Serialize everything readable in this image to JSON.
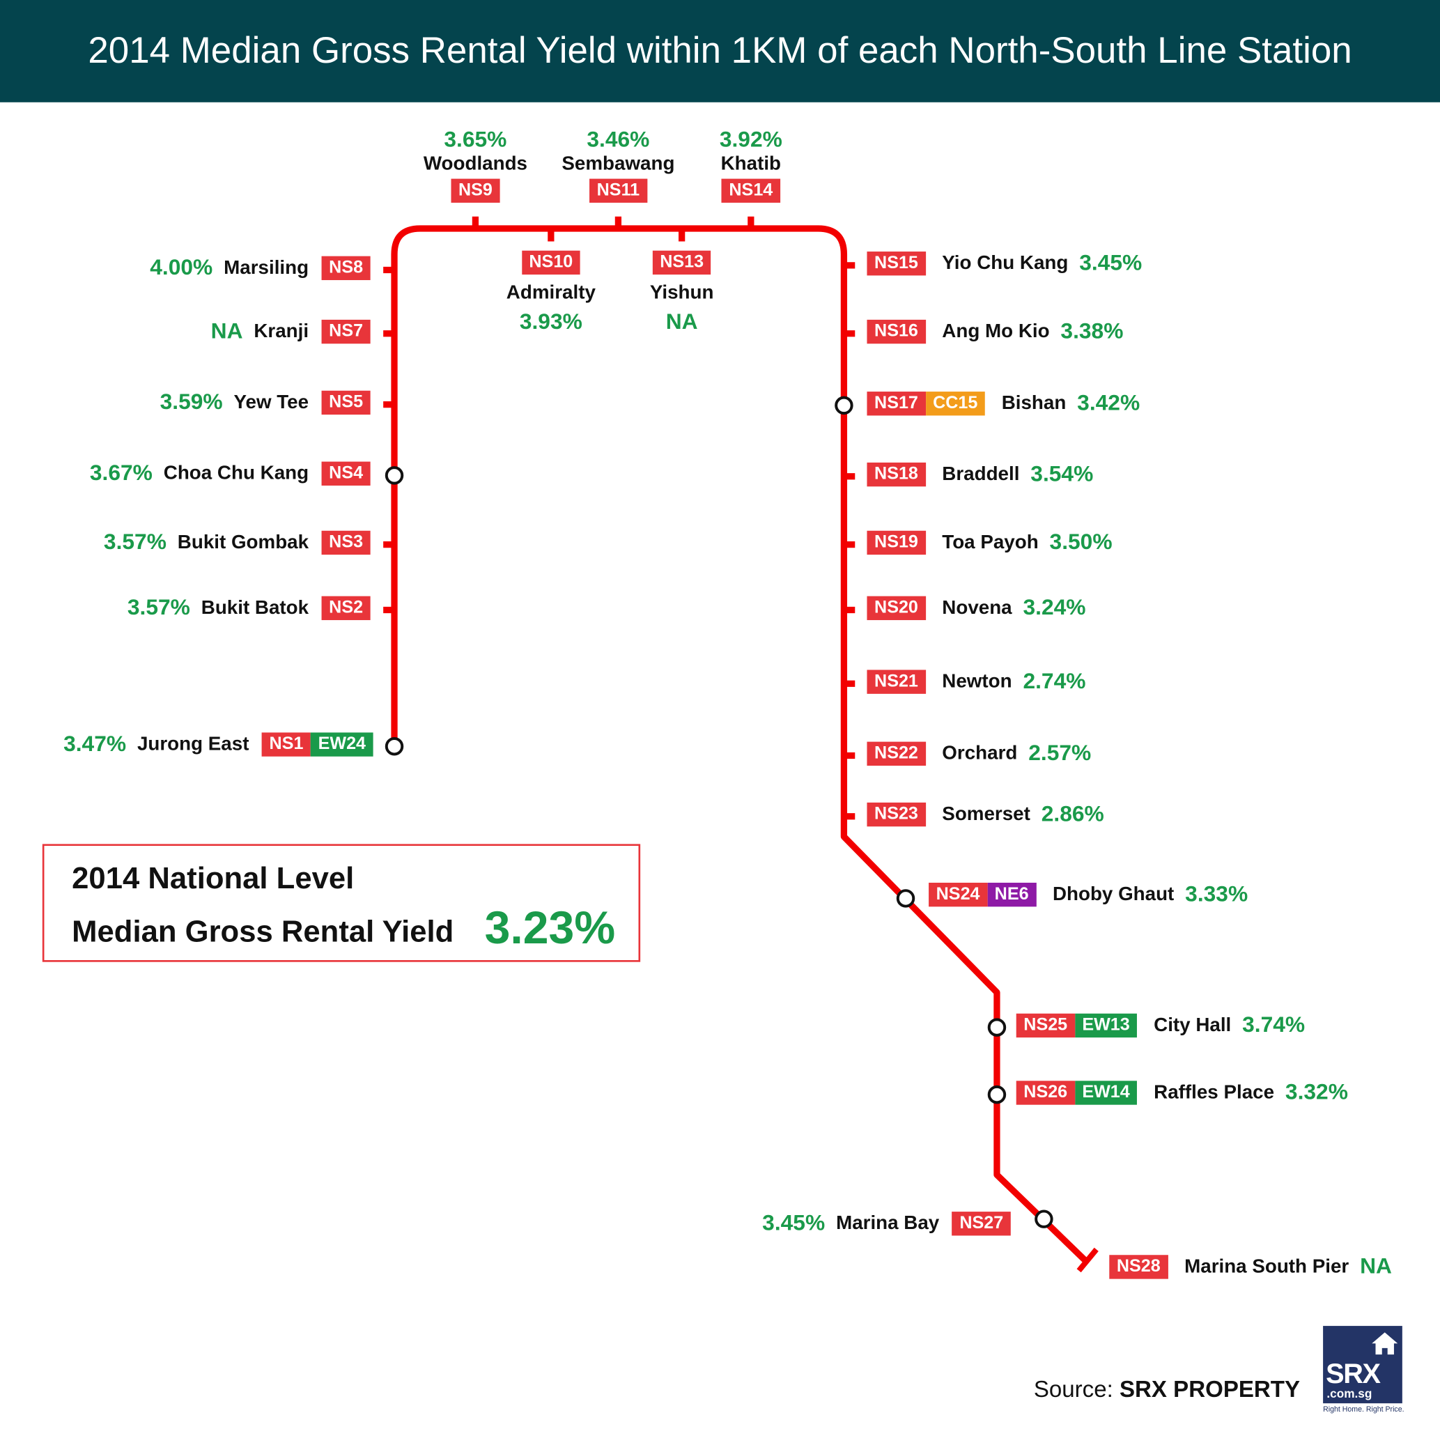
{
  "title": "2014 Median Gross Rental Yield within 1KM of each North-South Line Station",
  "line_colors": {
    "NS": "#e8353a",
    "EW": "#1a9a4a",
    "CC": "#f39c1a",
    "NE": "#8e1aa6"
  },
  "track_color": "#f20000",
  "stations": [
    {
      "codes": [
        "NS1",
        "EW24"
      ],
      "name": "Jurong East",
      "yield": "3.47%",
      "interchange": true
    },
    {
      "codes": [
        "NS2"
      ],
      "name": "Bukit Batok",
      "yield": "3.57%"
    },
    {
      "codes": [
        "NS3"
      ],
      "name": "Bukit Gombak",
      "yield": "3.57%"
    },
    {
      "codes": [
        "NS4"
      ],
      "name": "Choa Chu Kang",
      "yield": "3.67%",
      "interchange": true
    },
    {
      "codes": [
        "NS5"
      ],
      "name": "Yew Tee",
      "yield": "3.59%"
    },
    {
      "codes": [
        "NS7"
      ],
      "name": "Kranji",
      "yield": "NA"
    },
    {
      "codes": [
        "NS8"
      ],
      "name": "Marsiling",
      "yield": "4.00%"
    },
    {
      "codes": [
        "NS9"
      ],
      "name": "Woodlands",
      "yield": "3.65%"
    },
    {
      "codes": [
        "NS10"
      ],
      "name": "Admiralty",
      "yield": "3.93%"
    },
    {
      "codes": [
        "NS11"
      ],
      "name": "Sembawang",
      "yield": "3.46%"
    },
    {
      "codes": [
        "NS13"
      ],
      "name": "Yishun",
      "yield": "NA"
    },
    {
      "codes": [
        "NS14"
      ],
      "name": "Khatib",
      "yield": "3.92%"
    },
    {
      "codes": [
        "NS15"
      ],
      "name": "Yio Chu Kang",
      "yield": "3.45%"
    },
    {
      "codes": [
        "NS16"
      ],
      "name": "Ang Mo Kio",
      "yield": "3.38%"
    },
    {
      "codes": [
        "NS17",
        "CC15"
      ],
      "name": "Bishan",
      "yield": "3.42%",
      "interchange": true
    },
    {
      "codes": [
        "NS18"
      ],
      "name": "Braddell",
      "yield": "3.54%"
    },
    {
      "codes": [
        "NS19"
      ],
      "name": "Toa Payoh",
      "yield": "3.50%"
    },
    {
      "codes": [
        "NS20"
      ],
      "name": "Novena",
      "yield": "3.24%"
    },
    {
      "codes": [
        "NS21"
      ],
      "name": "Newton",
      "yield": "2.74%"
    },
    {
      "codes": [
        "NS22"
      ],
      "name": "Orchard",
      "yield": "2.57%"
    },
    {
      "codes": [
        "NS23"
      ],
      "name": "Somerset",
      "yield": "2.86%"
    },
    {
      "codes": [
        "NS24",
        "NE6"
      ],
      "name": "Dhoby Ghaut",
      "yield": "3.33%",
      "interchange": true
    },
    {
      "codes": [
        "NS25",
        "EW13"
      ],
      "name": "City Hall",
      "yield": "3.74%",
      "interchange": true
    },
    {
      "codes": [
        "NS26",
        "EW14"
      ],
      "name": "Raffles Place",
      "yield": "3.32%",
      "interchange": true
    },
    {
      "codes": [
        "NS27"
      ],
      "name": "Marina Bay",
      "yield": "3.45%",
      "interchange": true
    },
    {
      "codes": [
        "NS28"
      ],
      "name": "Marina South Pier",
      "yield": "NA"
    }
  ],
  "legend": {
    "line1": "2014 National Level",
    "line2": "Median Gross Rental Yield",
    "value": "3.23%"
  },
  "source": {
    "label": "Source:",
    "name": "SRX PROPERTY"
  },
  "logo": {
    "text": "SRX",
    "domain": ".com.sg",
    "tagline": "Right Home. Right Price."
  }
}
